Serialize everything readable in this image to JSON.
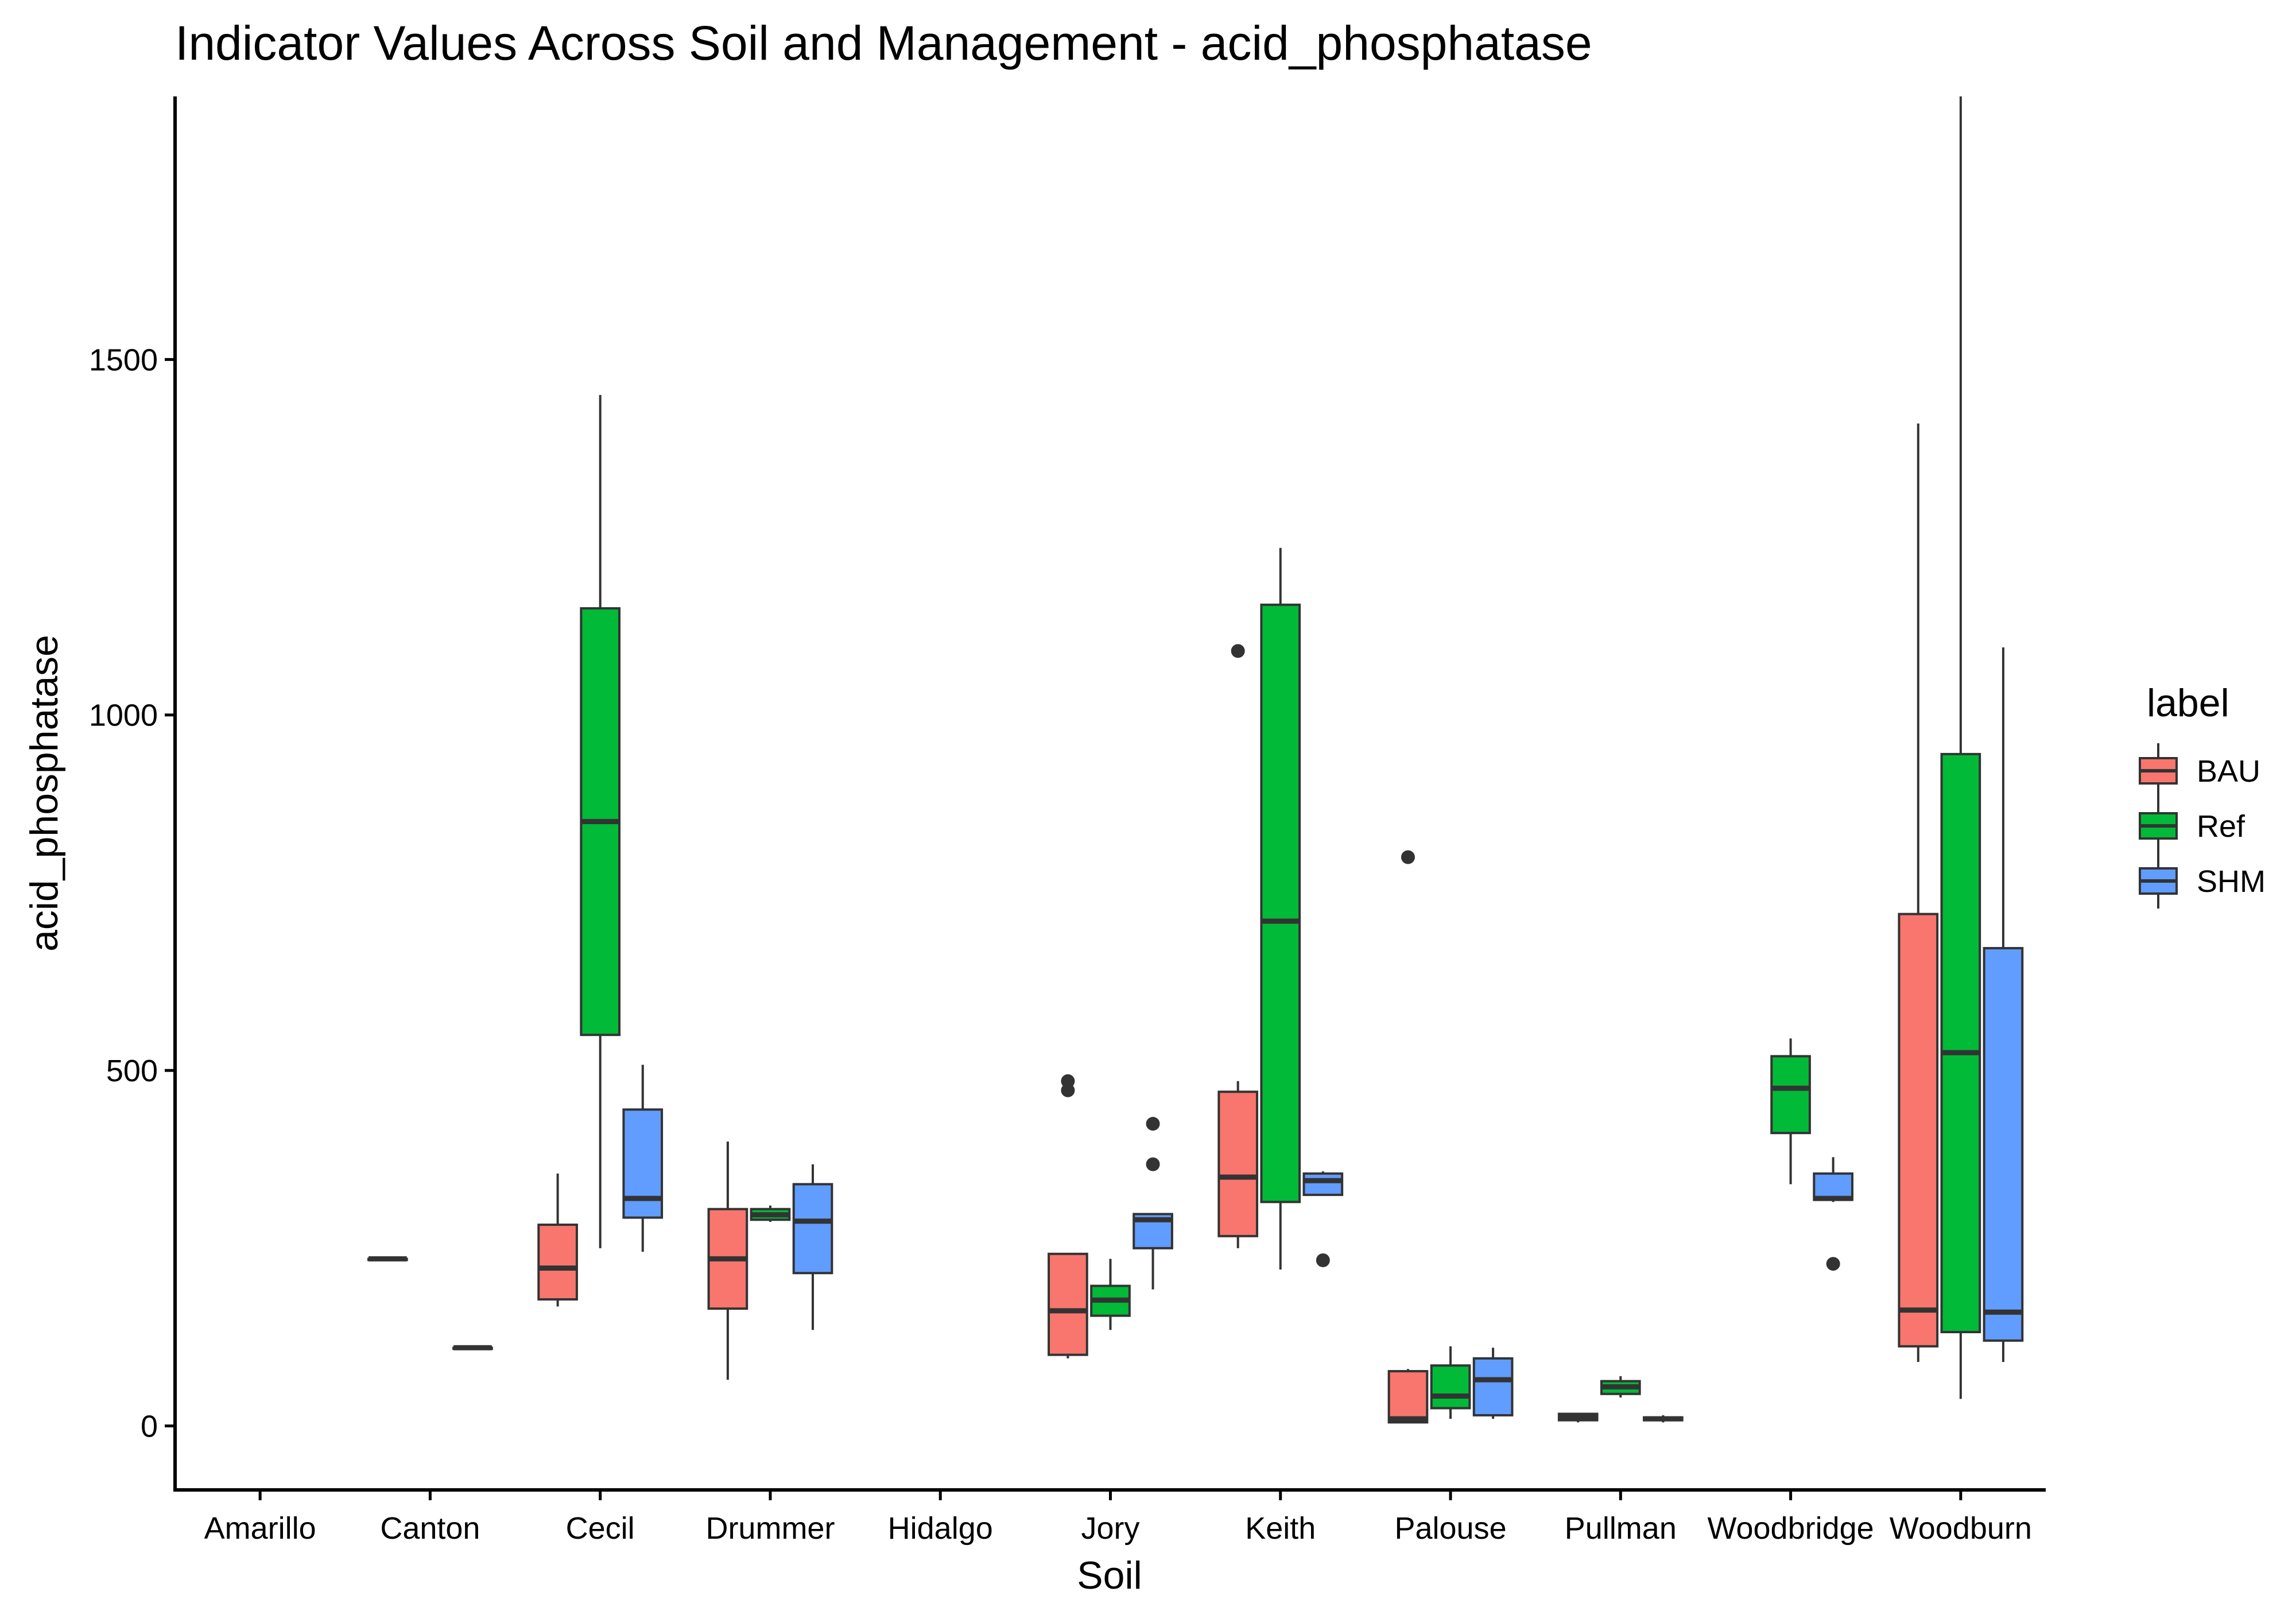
{
  "chart_data": {
    "type": "boxplot",
    "title": "Indicator Values Across Soil and Management - acid_phosphatase",
    "xlabel": "Soil",
    "ylabel": "acid_phosphatase",
    "ylim": [
      -90,
      1870
    ],
    "yticks": [
      0,
      500,
      1000,
      1500
    ],
    "grid": false,
    "legend": {
      "title": "label",
      "position": "right"
    },
    "categories": [
      "Amarillo",
      "Canton",
      "Cecil",
      "Drummer",
      "Hidalgo",
      "Jory",
      "Keith",
      "Palouse",
      "Pullman",
      "Woodbridge",
      "Woodburn"
    ],
    "series": [
      {
        "name": "BAU",
        "color": "#F8766D",
        "boxes": [
          null,
          {
            "min": 235,
            "q1": 235,
            "median": 235,
            "q3": 235,
            "max": 235,
            "outliers": []
          },
          {
            "min": 168,
            "q1": 178,
            "median": 222,
            "q3": 283,
            "max": 355,
            "outliers": []
          },
          {
            "min": 65,
            "q1": 165,
            "median": 235,
            "q3": 305,
            "max": 400,
            "outliers": []
          },
          null,
          {
            "min": 95,
            "q1": 100,
            "median": 162,
            "q3": 242,
            "max": 242,
            "outliers": [
              485,
              472
            ]
          },
          {
            "min": 250,
            "q1": 267,
            "median": 350,
            "q3": 470,
            "max": 485,
            "outliers": [
              1090
            ]
          },
          {
            "min": 5,
            "q1": 5,
            "median": 10,
            "q3": 77,
            "max": 80,
            "outliers": [
              800
            ]
          },
          {
            "min": 5,
            "q1": 8,
            "median": 13,
            "q3": 17,
            "max": 18,
            "outliers": []
          },
          null,
          {
            "min": 90,
            "q1": 112,
            "median": 163,
            "q3": 720,
            "max": 1410,
            "outliers": []
          }
        ]
      },
      {
        "name": "Ref",
        "color": "#00BA38",
        "boxes": [
          null,
          null,
          {
            "min": 250,
            "q1": 550,
            "median": 850,
            "q3": 1150,
            "max": 1450,
            "outliers": []
          },
          {
            "min": 287,
            "q1": 290,
            "median": 297,
            "q3": 305,
            "max": 310,
            "outliers": []
          },
          null,
          {
            "min": 135,
            "q1": 155,
            "median": 177,
            "q3": 197,
            "max": 235,
            "outliers": []
          },
          {
            "min": 220,
            "q1": 315,
            "median": 710,
            "q3": 1155,
            "max": 1235,
            "outliers": []
          },
          {
            "min": 10,
            "q1": 25,
            "median": 42,
            "q3": 85,
            "max": 112,
            "outliers": []
          },
          {
            "min": 40,
            "q1": 45,
            "median": 55,
            "q3": 63,
            "max": 70,
            "outliers": []
          },
          {
            "min": 340,
            "q1": 412,
            "median": 475,
            "q3": 520,
            "max": 545,
            "outliers": []
          },
          {
            "min": 38,
            "q1": 132,
            "median": 525,
            "q3": 945,
            "max": 1870,
            "outliers": []
          }
        ]
      },
      {
        "name": "SHM",
        "color": "#619CFF",
        "boxes": [
          null,
          {
            "min": 110,
            "q1": 110,
            "median": 110,
            "q3": 110,
            "max": 110,
            "outliers": []
          },
          {
            "min": 245,
            "q1": 293,
            "median": 320,
            "q3": 445,
            "max": 508,
            "outliers": []
          },
          {
            "min": 135,
            "q1": 215,
            "median": 288,
            "q3": 340,
            "max": 368,
            "outliers": []
          },
          null,
          {
            "min": 192,
            "q1": 250,
            "median": 290,
            "q3": 298,
            "max": 298,
            "outliers": [
              425,
              368
            ]
          },
          {
            "min": 325,
            "q1": 325,
            "median": 345,
            "q3": 355,
            "max": 358,
            "outliers": [
              233
            ]
          },
          {
            "min": 10,
            "q1": 15,
            "median": 65,
            "q3": 95,
            "max": 110,
            "outliers": []
          },
          {
            "min": 5,
            "q1": 8,
            "median": 10,
            "q3": 12,
            "max": 15,
            "outliers": []
          },
          {
            "min": 315,
            "q1": 318,
            "median": 320,
            "q3": 355,
            "max": 378,
            "outliers": [
              228
            ]
          },
          {
            "min": 90,
            "q1": 120,
            "median": 160,
            "q3": 672,
            "max": 1095,
            "outliers": []
          }
        ]
      }
    ]
  }
}
